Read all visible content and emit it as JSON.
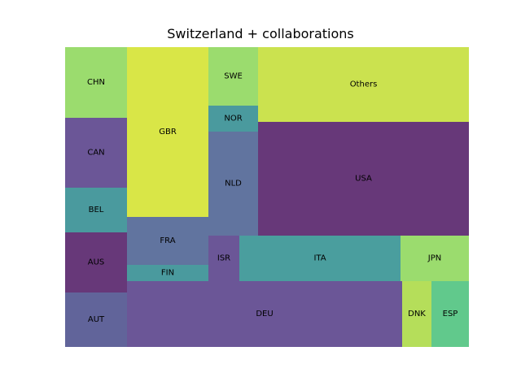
{
  "chart_data": {
    "type": "treemap",
    "title": "Switzerland + collaborations",
    "cells": [
      {
        "label": "CHN",
        "color": "#9bdc6e"
      },
      {
        "label": "GBR",
        "color": "#d9e647"
      },
      {
        "label": "SWE",
        "color": "#9bdc6e"
      },
      {
        "label": "Others",
        "color": "#cbe24f"
      },
      {
        "label": "NOR",
        "color": "#4a9a9e"
      },
      {
        "label": "CAN",
        "color": "#6b5697"
      },
      {
        "label": "NLD",
        "color": "#61749f"
      },
      {
        "label": "USA",
        "color": "#673879"
      },
      {
        "label": "BEL",
        "color": "#4a9a9e"
      },
      {
        "label": "FRA",
        "color": "#61749f"
      },
      {
        "label": "FIN",
        "color": "#4a9a9e"
      },
      {
        "label": "ISR",
        "color": "#6b5697"
      },
      {
        "label": "ITA",
        "color": "#4a9e9e"
      },
      {
        "label": "JPN",
        "color": "#9bdc6e"
      },
      {
        "label": "AUS",
        "color": "#673879"
      },
      {
        "label": "AUT",
        "color": "#61649a"
      },
      {
        "label": "DEU",
        "color": "#6b5697"
      },
      {
        "label": "DNK",
        "color": "#b5de5a"
      },
      {
        "label": "ESP",
        "color": "#61c98c"
      }
    ]
  }
}
